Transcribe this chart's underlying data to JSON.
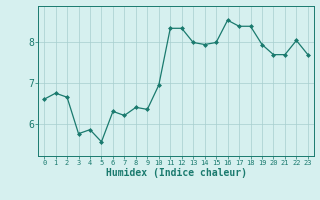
{
  "x": [
    0,
    1,
    2,
    3,
    4,
    5,
    6,
    7,
    8,
    9,
    10,
    11,
    12,
    13,
    14,
    15,
    16,
    17,
    18,
    19,
    20,
    21,
    22,
    23
  ],
  "y": [
    6.6,
    6.75,
    6.65,
    5.75,
    5.85,
    5.55,
    6.3,
    6.2,
    6.4,
    6.35,
    6.95,
    8.35,
    8.35,
    8.0,
    7.95,
    8.0,
    8.55,
    8.4,
    8.4,
    7.95,
    7.7,
    7.7,
    8.05,
    7.7
  ],
  "line_color": "#1a7a6e",
  "marker": "D",
  "marker_size": 2,
  "bg_color": "#d6f0ef",
  "grid_color": "#a8cece",
  "tick_color": "#1a7a6e",
  "xlabel": "Humidex (Indice chaleur)",
  "xlabel_fontsize": 7,
  "ylim_min": 5.2,
  "ylim_max": 8.9,
  "xlim_min": -0.5,
  "xlim_max": 23.5,
  "yticks": [
    6,
    7,
    8
  ],
  "ytick_fontsize": 7,
  "xtick_fontsize": 5,
  "xticks": [
    0,
    1,
    2,
    3,
    4,
    5,
    6,
    7,
    8,
    9,
    10,
    11,
    12,
    13,
    14,
    15,
    16,
    17,
    18,
    19,
    20,
    21,
    22,
    23
  ]
}
